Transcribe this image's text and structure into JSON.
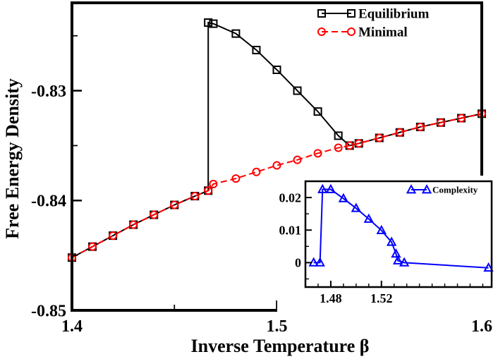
{
  "chart_data": [
    {
      "type": "line",
      "role": "main",
      "xlabel": "Inverse Temperature β",
      "ylabel": "Free Energy Density",
      "xlim": [
        1.4,
        1.6
      ],
      "ylim": [
        -0.85,
        -0.822
      ],
      "xticks": [
        1.4,
        1.5,
        1.6
      ],
      "xtick_labels": [
        "1.4",
        "1.5",
        "1.6"
      ],
      "yticks": [
        -0.85,
        -0.84,
        -0.83
      ],
      "ytick_labels": [
        "-0.85",
        "-0.84",
        "-0.83"
      ],
      "legend_position": "top-right",
      "series": [
        {
          "name": "Equilibrium",
          "color": "#000000",
          "marker": "square",
          "x": [
            1.4,
            1.41,
            1.42,
            1.43,
            1.44,
            1.45,
            1.46,
            1.4665,
            1.4665,
            1.469,
            1.48,
            1.49,
            1.5,
            1.51,
            1.52,
            1.53,
            1.5355,
            1.54,
            1.55,
            1.56,
            1.57,
            1.58,
            1.59,
            1.6
          ],
          "y": [
            -0.8452,
            -0.8442,
            -0.8432,
            -0.8422,
            -0.8413,
            -0.8404,
            -0.8396,
            -0.8391,
            -0.8238,
            -0.8239,
            -0.8248,
            -0.8263,
            -0.8281,
            -0.83,
            -0.8319,
            -0.8341,
            -0.835,
            -0.8348,
            -0.8343,
            -0.8338,
            -0.8333,
            -0.8329,
            -0.8325,
            -0.8321
          ]
        },
        {
          "name": "Minimal",
          "color": "#ff0000",
          "marker": "circle",
          "dashed": true,
          "x": [
            1.4,
            1.41,
            1.42,
            1.43,
            1.44,
            1.45,
            1.46,
            1.4665,
            1.469,
            1.48,
            1.49,
            1.5,
            1.51,
            1.52,
            1.53,
            1.5355,
            1.54,
            1.55,
            1.56,
            1.57,
            1.58,
            1.59,
            1.6
          ],
          "y": [
            -0.8452,
            -0.8442,
            -0.8432,
            -0.8422,
            -0.8413,
            -0.8404,
            -0.8396,
            -0.8391,
            -0.8385,
            -0.838,
            -0.8374,
            -0.8368,
            -0.8363,
            -0.8357,
            -0.8352,
            -0.835,
            -0.8348,
            -0.8343,
            -0.8338,
            -0.8333,
            -0.8329,
            -0.8325,
            -0.8321
          ]
        }
      ]
    },
    {
      "type": "line",
      "role": "inset",
      "xlim": [
        1.46,
        1.607
      ],
      "ylim": [
        -0.0075,
        0.025
      ],
      "xticks": [
        1.48,
        1.52
      ],
      "xtick_labels": [
        "1.48",
        "1.52"
      ],
      "yticks": [
        0,
        0.01,
        0.02
      ],
      "ytick_labels": [
        "0",
        "0.01",
        "0.02"
      ],
      "legend_position": "top-right",
      "series": [
        {
          "name": "Complexity",
          "color": "#0000ff",
          "marker": "triangle",
          "x": [
            1.4665,
            1.4715,
            1.4735,
            1.48,
            1.49,
            1.5,
            1.51,
            1.52,
            1.528,
            1.5315,
            1.533,
            1.538,
            1.6045
          ],
          "y": [
            0,
            0,
            0.0225,
            0.0225,
            0.0197,
            0.0167,
            0.0134,
            0.0099,
            0.0063,
            0.0027,
            0.0006,
            0.0,
            -0.0016
          ]
        }
      ]
    }
  ]
}
